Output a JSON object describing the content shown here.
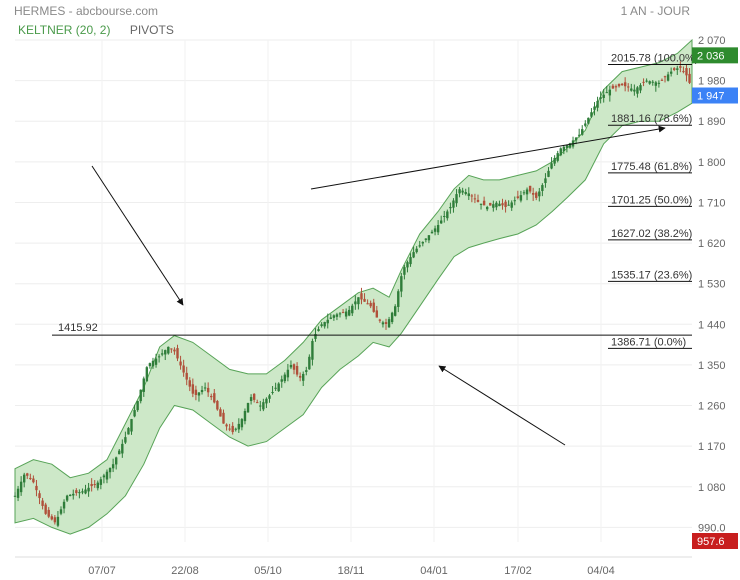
{
  "header": {
    "title": "HERMES - abcbourse.com",
    "period": "1 AN - JOUR"
  },
  "indicators": {
    "keltner": "KELTNER (20, 2)",
    "pivots": "PIVOTS"
  },
  "colors": {
    "band_fill": "#cde8c8",
    "band_stroke": "#57a357",
    "candle_up": "#2f7d3a",
    "candle_down": "#b0503a",
    "tag_green": "#2e8b2e",
    "tag_blue": "#3b82f6",
    "tag_red": "#c81e1e"
  },
  "chart_data": {
    "type": "candlestick",
    "ylim": [
      957.6,
      2070
    ],
    "yticks": [
      "2 070",
      "1 980",
      "1 890",
      "1 800",
      "1 710",
      "1 620",
      "1 530",
      "1 440",
      "1 350",
      "1 260",
      "1 170",
      "1 080",
      "990.0"
    ],
    "xticks": [
      "07/07",
      "22/08",
      "05/10",
      "18/11",
      "04/01",
      "17/02",
      "04/04"
    ],
    "price_tags": [
      {
        "label": "2 036",
        "value": 2036,
        "color": "#2e8b2e"
      },
      {
        "label": "1 947",
        "value": 1947,
        "color": "#3b82f6"
      },
      {
        "label": "957.6",
        "value": 957.6,
        "color": "#c81e1e"
      }
    ],
    "horizontal_line": {
      "label": "1415.92",
      "value": 1415.92
    },
    "fibonacci_levels": [
      {
        "label": "2015.78  (100.0%)",
        "value": 2015.78
      },
      {
        "label": "1881.16  (78.6%)",
        "value": 1881.16
      },
      {
        "label": "1775.48  (61.8%)",
        "value": 1775.48
      },
      {
        "label": "1701.25  (50.0%)",
        "value": 1701.25
      },
      {
        "label": "1627.02  (38.2%)",
        "value": 1627.02
      },
      {
        "label": "1535.17  (23.6%)",
        "value": 1535.17
      },
      {
        "label": "1386.71  (0.0%)",
        "value": 1386.71
      }
    ],
    "close_path": [
      [
        0,
        1060
      ],
      [
        8,
        1110
      ],
      [
        15,
        1090
      ],
      [
        25,
        1020
      ],
      [
        33,
        1000
      ],
      [
        42,
        1060
      ],
      [
        55,
        1070
      ],
      [
        68,
        1090
      ],
      [
        80,
        1130
      ],
      [
        90,
        1190
      ],
      [
        100,
        1270
      ],
      [
        108,
        1350
      ],
      [
        118,
        1370
      ],
      [
        125,
        1390
      ],
      [
        130,
        1380
      ],
      [
        138,
        1330
      ],
      [
        146,
        1280
      ],
      [
        155,
        1300
      ],
      [
        162,
        1270
      ],
      [
        170,
        1220
      ],
      [
        178,
        1200
      ],
      [
        185,
        1230
      ],
      [
        192,
        1280
      ],
      [
        200,
        1260
      ],
      [
        210,
        1290
      ],
      [
        218,
        1320
      ],
      [
        225,
        1350
      ],
      [
        232,
        1320
      ],
      [
        238,
        1340
      ],
      [
        243,
        1410
      ],
      [
        250,
        1440
      ],
      [
        260,
        1460
      ],
      [
        272,
        1470
      ],
      [
        280,
        1500
      ],
      [
        290,
        1480
      ],
      [
        296,
        1450
      ],
      [
        303,
        1440
      ],
      [
        310,
        1480
      ],
      [
        316,
        1560
      ],
      [
        325,
        1600
      ],
      [
        335,
        1630
      ],
      [
        345,
        1660
      ],
      [
        355,
        1700
      ],
      [
        362,
        1740
      ],
      [
        370,
        1730
      ],
      [
        378,
        1710
      ],
      [
        385,
        1700
      ],
      [
        393,
        1710
      ],
      [
        400,
        1700
      ],
      [
        410,
        1720
      ],
      [
        418,
        1740
      ],
      [
        425,
        1720
      ],
      [
        432,
        1760
      ],
      [
        438,
        1800
      ],
      [
        445,
        1830
      ],
      [
        452,
        1840
      ],
      [
        460,
        1860
      ],
      [
        468,
        1900
      ],
      [
        476,
        1940
      ],
      [
        485,
        1960
      ],
      [
        495,
        1970
      ],
      [
        505,
        1960
      ],
      [
        515,
        1980
      ],
      [
        525,
        1975
      ],
      [
        535,
        2000
      ],
      [
        542,
        2010
      ],
      [
        548,
        1990
      ],
      [
        552,
        1960
      ]
    ],
    "keltner_upper": [
      [
        0,
        1120
      ],
      [
        15,
        1140
      ],
      [
        30,
        1130
      ],
      [
        45,
        1100
      ],
      [
        60,
        1110
      ],
      [
        75,
        1140
      ],
      [
        90,
        1220
      ],
      [
        105,
        1300
      ],
      [
        118,
        1390
      ],
      [
        130,
        1415
      ],
      [
        145,
        1400
      ],
      [
        160,
        1370
      ],
      [
        175,
        1340
      ],
      [
        190,
        1330
      ],
      [
        205,
        1330
      ],
      [
        220,
        1360
      ],
      [
        235,
        1400
      ],
      [
        250,
        1450
      ],
      [
        265,
        1480
      ],
      [
        280,
        1510
      ],
      [
        292,
        1520
      ],
      [
        305,
        1500
      ],
      [
        315,
        1560
      ],
      [
        330,
        1640
      ],
      [
        345,
        1690
      ],
      [
        358,
        1740
      ],
      [
        370,
        1770
      ],
      [
        382,
        1760
      ],
      [
        395,
        1760
      ],
      [
        410,
        1770
      ],
      [
        425,
        1780
      ],
      [
        438,
        1800
      ],
      [
        450,
        1830
      ],
      [
        465,
        1870
      ],
      [
        480,
        1960
      ],
      [
        495,
        2000
      ],
      [
        510,
        2010
      ],
      [
        525,
        2020
      ],
      [
        540,
        2040
      ],
      [
        552,
        2070
      ]
    ],
    "keltner_lower": [
      [
        0,
        1000
      ],
      [
        15,
        1010
      ],
      [
        30,
        990
      ],
      [
        45,
        975
      ],
      [
        60,
        990
      ],
      [
        75,
        1020
      ],
      [
        90,
        1060
      ],
      [
        105,
        1130
      ],
      [
        118,
        1210
      ],
      [
        130,
        1260
      ],
      [
        145,
        1250
      ],
      [
        160,
        1220
      ],
      [
        175,
        1190
      ],
      [
        190,
        1170
      ],
      [
        205,
        1180
      ],
      [
        220,
        1210
      ],
      [
        235,
        1240
      ],
      [
        250,
        1300
      ],
      [
        265,
        1340
      ],
      [
        280,
        1370
      ],
      [
        292,
        1400
      ],
      [
        305,
        1390
      ],
      [
        315,
        1420
      ],
      [
        330,
        1480
      ],
      [
        345,
        1540
      ],
      [
        358,
        1590
      ],
      [
        370,
        1610
      ],
      [
        382,
        1620
      ],
      [
        395,
        1630
      ],
      [
        410,
        1640
      ],
      [
        425,
        1660
      ],
      [
        438,
        1690
      ],
      [
        450,
        1720
      ],
      [
        465,
        1760
      ],
      [
        480,
        1840
      ],
      [
        495,
        1880
      ],
      [
        510,
        1890
      ],
      [
        525,
        1890
      ],
      [
        540,
        1910
      ],
      [
        552,
        1930
      ]
    ]
  }
}
